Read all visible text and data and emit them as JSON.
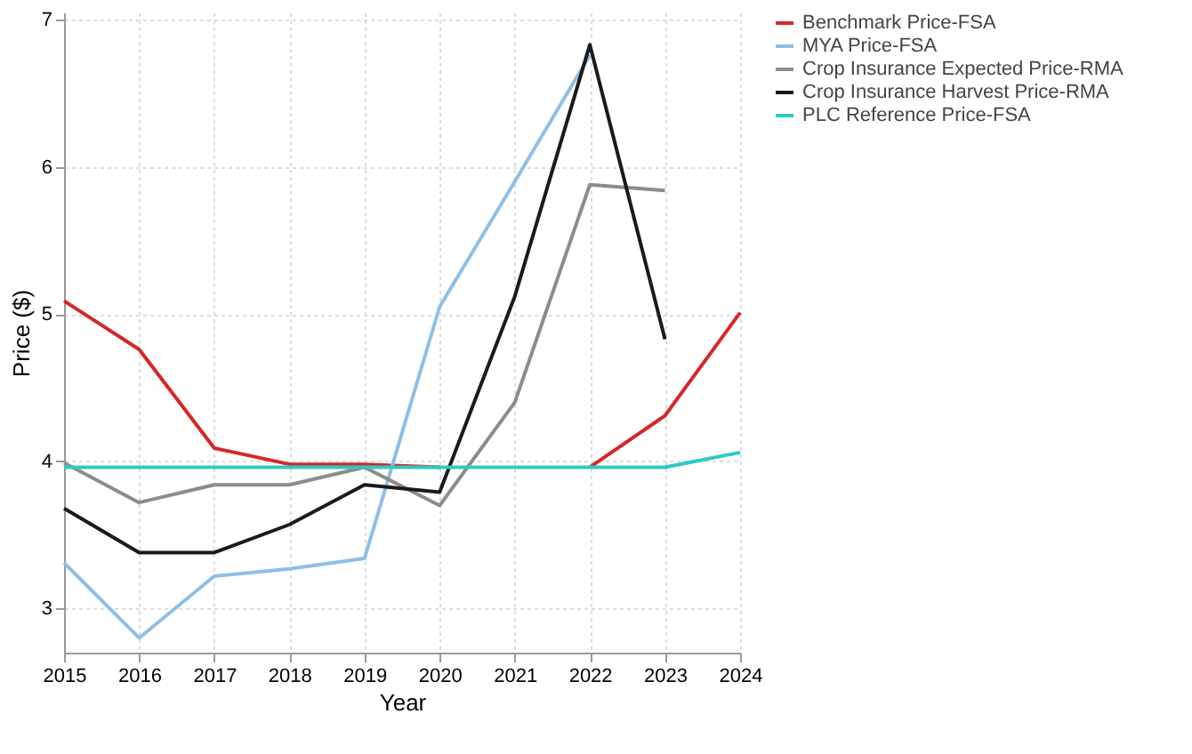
{
  "chart_data": {
    "type": "line",
    "xlabel": "Year",
    "ylabel": "Price ($)",
    "x": [
      2015,
      2016,
      2017,
      2018,
      2019,
      2020,
      2021,
      2022,
      2023,
      2024
    ],
    "xlim": [
      2015,
      2024
    ],
    "xticks": [
      2015,
      2016,
      2017,
      2018,
      2019,
      2020,
      2021,
      2022,
      2023,
      2024
    ],
    "ylim": [
      2.7,
      7.05
    ],
    "yticks": [
      3,
      4,
      5,
      6,
      7
    ],
    "grid": true,
    "legend": "right",
    "line_style": "solid",
    "marker": "none",
    "series": [
      {
        "name": "Benchmark Price-FSA",
        "color": "#d62728",
        "values": [
          5.09,
          4.76,
          4.09,
          3.98,
          3.98,
          3.96,
          null,
          3.96,
          4.31,
          5.01
        ]
      },
      {
        "name": "MYA Price-FSA",
        "color": "#8fbfe6",
        "values": [
          3.31,
          2.8,
          3.22,
          3.27,
          3.34,
          5.05,
          5.9,
          6.76,
          null,
          null
        ]
      },
      {
        "name": "Crop Insurance Expected Price-RMA",
        "color": "#8c8c8c",
        "values": [
          3.99,
          3.72,
          3.84,
          3.84,
          3.96,
          3.7,
          4.4,
          5.88,
          5.84,
          null
        ]
      },
      {
        "name": "Crop Insurance Harvest Price-RMA",
        "color": "#1a1a1a",
        "values": [
          3.68,
          3.38,
          3.38,
          3.57,
          3.84,
          3.79,
          5.12,
          6.83,
          4.83,
          null
        ]
      },
      {
        "name": "PLC Reference Price-FSA",
        "color": "#2ec9c9",
        "values": [
          3.96,
          3.96,
          3.96,
          3.96,
          3.96,
          3.96,
          3.96,
          3.96,
          3.96,
          4.06
        ]
      }
    ]
  }
}
